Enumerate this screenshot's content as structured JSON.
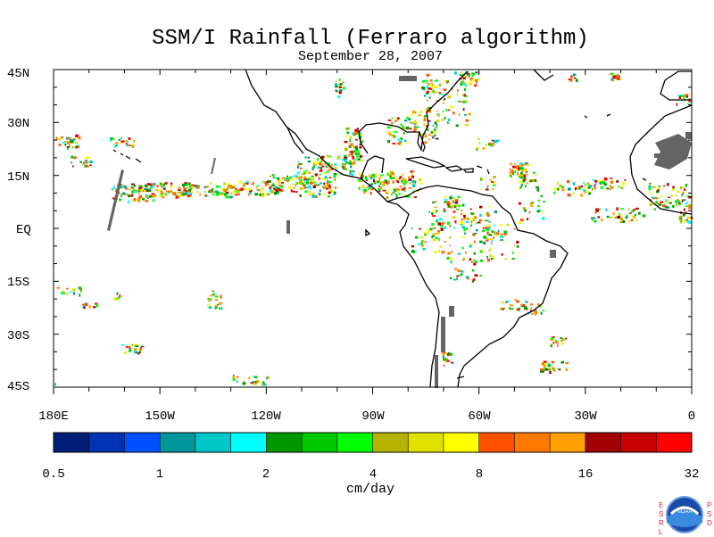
{
  "title": "SSM/I Rainfall (Ferraro algorithm)",
  "subtitle": "September 28, 2007",
  "y_ticks": [
    "45N",
    "30N",
    "15N",
    "EQ",
    "15S",
    "30S",
    "45S"
  ],
  "x_ticks": [
    "180E",
    "150W",
    "120W",
    "90W",
    "60W",
    "30W",
    "0"
  ],
  "colorbar": {
    "unit_label": "cm/day",
    "tick_labels": [
      "0.5",
      "1",
      "2",
      "4",
      "8",
      "16",
      "32"
    ],
    "colors": [
      "#001e78",
      "#0032b4",
      "#0050ff",
      "#00969b",
      "#00c8c8",
      "#00ffff",
      "#009600",
      "#00c800",
      "#00ff00",
      "#b4b400",
      "#e1e100",
      "#ffff00",
      "#ff5000",
      "#ff7800",
      "#ffa000",
      "#a00000",
      "#c80000",
      "#ff0000"
    ]
  },
  "logo": {
    "text": "NOAA",
    "left_letters": "ESRL",
    "right_letters": "PSD"
  },
  "map_extent": {
    "lon_min": -180,
    "lon_max": 0,
    "lat_min": -45,
    "lat_max": 45
  },
  "colors": {
    "coast": "#000000",
    "missing": "#646464"
  }
}
